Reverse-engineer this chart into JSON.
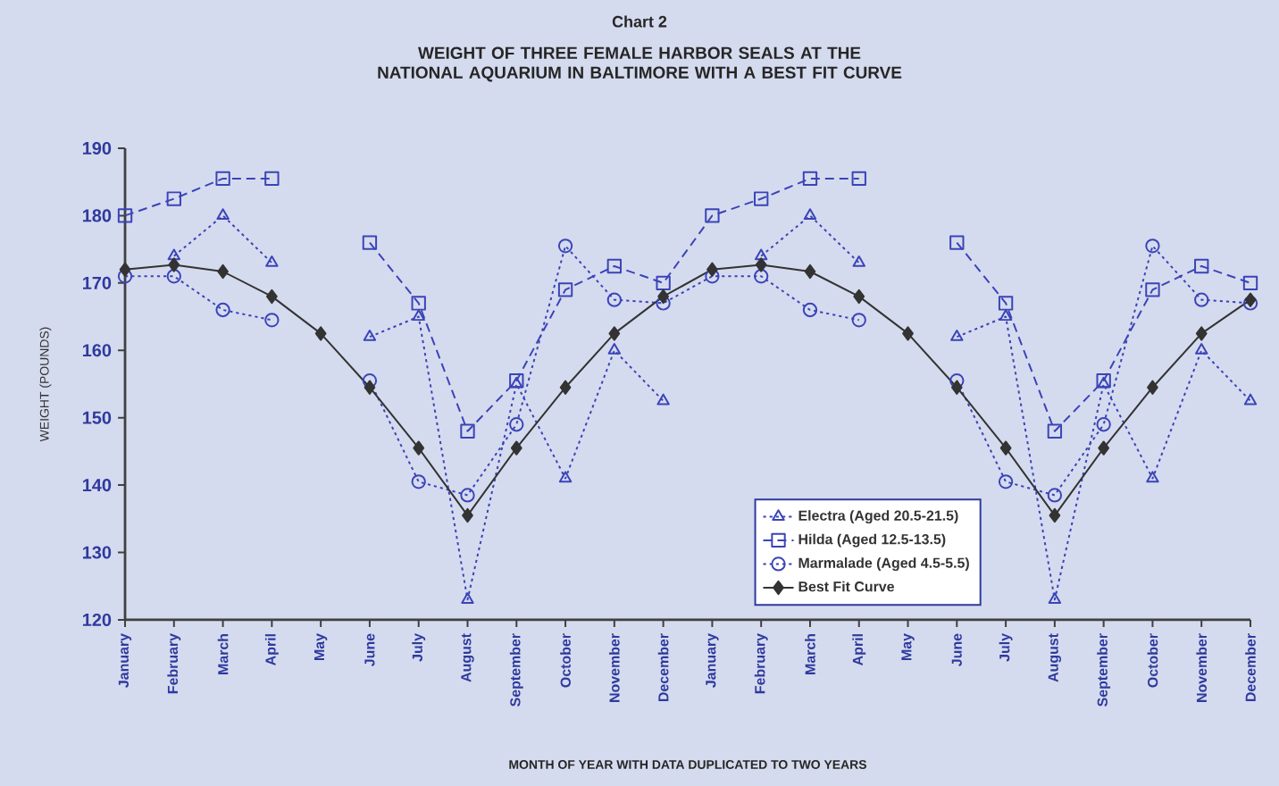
{
  "chart_data": {
    "type": "line",
    "subtitle": "Chart 2",
    "title": "WEIGHT OF THREE FEMALE HARBOR SEALS AT THE NATIONAL AQUARIUM IN BALTIMORE WITH A BEST FIT CURVE",
    "xlabel": "MONTH OF YEAR WITH DATA DUPLICATED TO TWO YEARS",
    "ylabel": "WEIGHT (POUNDS)",
    "categories": [
      "January",
      "February",
      "March",
      "April",
      "May",
      "June",
      "July",
      "August",
      "September",
      "October",
      "November",
      "December",
      "January",
      "February",
      "March",
      "April",
      "May",
      "June",
      "July",
      "August",
      "September",
      "October",
      "November",
      "December"
    ],
    "ylim": [
      120,
      190
    ],
    "yticks": [
      120,
      130,
      140,
      150,
      160,
      170,
      180,
      190
    ],
    "grid": false,
    "legend": "bottom",
    "series": [
      {
        "name": "Electra (Aged 20.5-21.5)",
        "color": "#3a44b8",
        "marker": "triangle",
        "line_style": "dotted",
        "values": [
          null,
          174,
          180,
          173,
          null,
          162,
          165,
          123,
          155,
          141,
          160,
          152.5,
          null,
          174,
          180,
          173,
          null,
          162,
          165,
          123,
          155,
          141,
          160,
          152.5
        ]
      },
      {
        "name": "Hilda (Aged 12.5-13.5)",
        "color": "#3a44b8",
        "marker": "square",
        "line_style": "dashed",
        "values": [
          180,
          182.5,
          185.5,
          185.5,
          null,
          176,
          167,
          148,
          155.5,
          169,
          172.5,
          170,
          180,
          182.5,
          185.5,
          185.5,
          null,
          176,
          167,
          148,
          155.5,
          169,
          172.5,
          170
        ]
      },
      {
        "name": "Marmalade (Aged 4.5-5.5)",
        "color": "#3a44b8",
        "marker": "circle",
        "line_style": "dotted",
        "values": [
          171,
          171,
          166,
          164.5,
          null,
          155.5,
          140.5,
          138.5,
          149,
          175.5,
          167.5,
          167,
          171,
          171,
          166,
          164.5,
          null,
          155.5,
          140.5,
          138.5,
          149,
          175.5,
          167.5,
          167
        ]
      },
      {
        "name": "Best Fit Curve",
        "color": "#333333",
        "marker": "diamond",
        "line_style": "solid",
        "values": [
          172,
          172.7,
          171.7,
          168,
          162.5,
          154.5,
          145.5,
          135.5,
          145.5,
          154.5,
          162.5,
          168,
          172,
          172.7,
          171.7,
          168,
          162.5,
          154.5,
          145.5,
          135.5,
          145.5,
          154.5,
          162.5,
          167.5
        ]
      }
    ]
  }
}
